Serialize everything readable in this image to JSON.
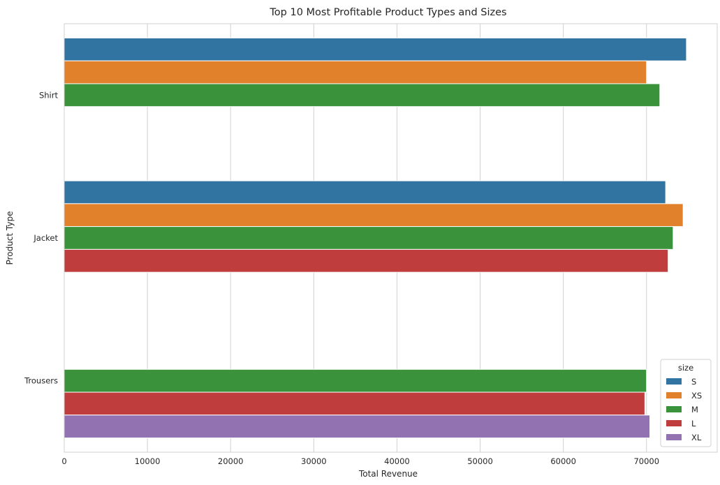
{
  "chart_data": {
    "type": "bar",
    "orientation": "horizontal",
    "title": "Top 10 Most Profitable Product Types and Sizes",
    "xlabel": "Total Revenue",
    "ylabel": "Product Type",
    "categories": [
      "Shirt",
      "Jacket",
      "Trousers"
    ],
    "xlim": [
      0,
      78500
    ],
    "xticks": [
      0,
      10000,
      20000,
      30000,
      40000,
      50000,
      60000,
      70000
    ],
    "grid": "vertical",
    "legend": {
      "title": "size",
      "placement": "lower-right",
      "entries": [
        "S",
        "XS",
        "M",
        "L",
        "XL"
      ]
    },
    "series": [
      {
        "name": "S",
        "color": "#3274a1",
        "values": [
          74800,
          72300,
          null
        ]
      },
      {
        "name": "XS",
        "color": "#e1812c",
        "values": [
          70000,
          74400,
          null
        ]
      },
      {
        "name": "M",
        "color": "#3a923a",
        "values": [
          71600,
          73200,
          70000
        ]
      },
      {
        "name": "L",
        "color": "#c03d3e",
        "values": [
          null,
          72600,
          69800
        ]
      },
      {
        "name": "XL",
        "color": "#9372b2",
        "values": [
          null,
          null,
          70400
        ]
      }
    ]
  }
}
